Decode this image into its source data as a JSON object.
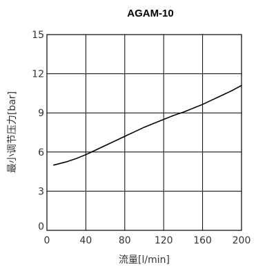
{
  "chart_data": {
    "type": "line",
    "title": "AGAM-10",
    "xlabel": "流量[l/min]",
    "ylabel": "最小调节压力[bar]",
    "xlim": [
      0,
      200
    ],
    "ylim": [
      0,
      15
    ],
    "x_ticks": [
      0,
      40,
      80,
      120,
      160,
      200
    ],
    "y_ticks": [
      0,
      3,
      6,
      9,
      12,
      15
    ],
    "x_tick_labels": [
      "0",
      "40",
      "80",
      "120",
      "160",
      "200"
    ],
    "y_tick_labels": [
      "0",
      "3",
      "6",
      "9",
      "12",
      "15"
    ],
    "grid": true,
    "series": [
      {
        "x": [
          7,
          20,
          30,
          40,
          50,
          60,
          70,
          80,
          90,
          100,
          110,
          120,
          130,
          140,
          150,
          160,
          170,
          180,
          190,
          200
        ],
        "y": [
          5.0,
          5.25,
          5.5,
          5.8,
          6.15,
          6.5,
          6.85,
          7.2,
          7.55,
          7.9,
          8.2,
          8.5,
          8.8,
          9.05,
          9.35,
          9.65,
          10.0,
          10.35,
          10.7,
          11.1
        ]
      }
    ]
  }
}
